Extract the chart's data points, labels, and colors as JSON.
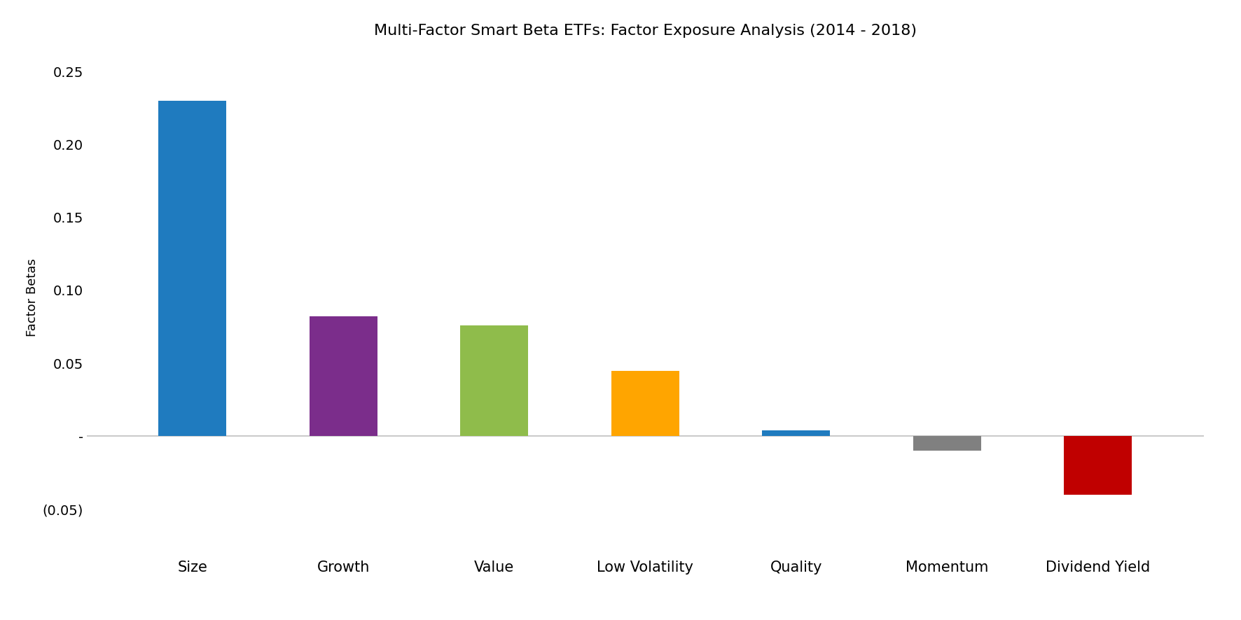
{
  "title": "Multi-Factor Smart Beta ETFs: Factor Exposure Analysis (2014 - 2018)",
  "categories": [
    "Size",
    "Growth",
    "Value",
    "Low Volatility",
    "Quality",
    "Momentum",
    "Dividend Yield"
  ],
  "values": [
    0.23,
    0.082,
    0.076,
    0.045,
    0.004,
    -0.01,
    -0.04
  ],
  "bar_colors": [
    "#1f7bbf",
    "#7b2d8b",
    "#8fbc4b",
    "#ffa500",
    "#1f7bbf",
    "#808080",
    "#c00000"
  ],
  "ylabel": "Factor Betas",
  "ylim": [
    -0.075,
    0.265
  ],
  "yticks": [
    0.25,
    0.2,
    0.15,
    0.1,
    0.05,
    0.0,
    -0.05
  ],
  "background_color": "#ffffff",
  "title_fontsize": 16,
  "label_fontsize": 13,
  "tick_fontsize": 14,
  "xlabel_fontsize": 15
}
